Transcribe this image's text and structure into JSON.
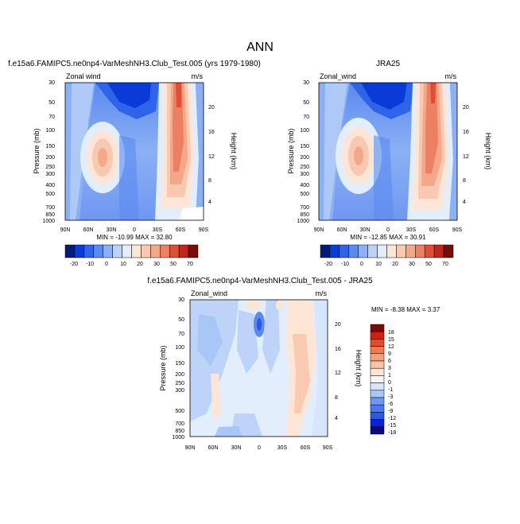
{
  "title": "ANN",
  "colors": {
    "diff_palette": [
      "#0a0a7a",
      "#0a22d8",
      "#2a56ea",
      "#4a78f0",
      "#6f97f2",
      "#a8c6f6",
      "#d8e6fb",
      "#f5f5f5",
      "#fde6d6",
      "#f9c3a7",
      "#f5a07c",
      "#f07a50",
      "#e54b24",
      "#d51f0e",
      "#7a0b0b"
    ],
    "full_palette": [
      "#061a78",
      "#0a3ad8",
      "#2e63ea",
      "#5a8af0",
      "#8bb0f4",
      "#bdd4f8",
      "#e3eefc",
      "#fde6d8",
      "#f8c8b0",
      "#f4a88a",
      "#ed8062",
      "#de4f36",
      "#c1261a",
      "#7a0b0b"
    ]
  },
  "chart_data": [
    {
      "type": "heatmap",
      "panel_title": "f.e15a6.FAMIPC5.ne0np4-VarMeshNH3.Club_Test.005 (yrs 1979-1980)",
      "variable": "Zonal wind",
      "units": "m/s",
      "ylabel": "Pressure (mb)",
      "ylabel_right": "Height (km)",
      "x_ticks": [
        "90N",
        "60N",
        "30N",
        "0",
        "30S",
        "60S",
        "90S"
      ],
      "y_ticks": [
        "30",
        "50",
        "70",
        "100",
        "150",
        "200",
        "250",
        "300",
        "400",
        "500",
        "700",
        "850",
        "1000"
      ],
      "height_ticks": [
        "20",
        "16",
        "12",
        "8",
        "4"
      ],
      "min_max": "MIN = -10.99  MAX = 32.80",
      "colorbar_labels": [
        "-20",
        "-10",
        "0",
        "10",
        "20",
        "30",
        "50",
        "70"
      ],
      "field": {
        "x": [
          90,
          60,
          30,
          0,
          -30,
          -60,
          -90
        ],
        "features": [
          {
            "lat": 33,
            "pressure": 200,
            "max_ms": 32.8
          },
          {
            "lat": -40,
            "pressure": 200,
            "max_ms": 30.0
          },
          {
            "lat": 0,
            "pressure": 50,
            "min_ms": -11.0
          }
        ]
      }
    },
    {
      "type": "heatmap",
      "panel_title": "JRA25",
      "variable": "Zonal_wind",
      "units": "m/s",
      "ylabel": "Pressure (mb)",
      "ylabel_right": "Height (km)",
      "x_ticks": [
        "90N",
        "60N",
        "30N",
        "0",
        "30S",
        "60S",
        "90S"
      ],
      "y_ticks": [
        "30",
        "50",
        "70",
        "100",
        "150",
        "200",
        "250",
        "300",
        "400",
        "500",
        "700",
        "850",
        "1000"
      ],
      "height_ticks": [
        "20",
        "16",
        "12",
        "8",
        "4"
      ],
      "min_max": "MIN = -12.85  MAX =  30.91",
      "colorbar_labels": [
        "-20",
        "-10",
        "0",
        "10",
        "20",
        "30",
        "50",
        "70"
      ],
      "field": {
        "x": [
          90,
          60,
          30,
          0,
          -30,
          -60,
          -90
        ],
        "features": [
          {
            "lat": 33,
            "pressure": 200,
            "max_ms": 30.9
          },
          {
            "lat": -42,
            "pressure": 200,
            "max_ms": 30.0
          },
          {
            "lat": 0,
            "pressure": 50,
            "min_ms": -12.85
          }
        ]
      }
    },
    {
      "type": "heatmap",
      "panel_title": "f.e15a6.FAMIPC5.ne0np4-VarMeshNH3.Club_Test.005 - JRA25",
      "variable": "Zonal_wind",
      "units": "m/s",
      "ylabel": "Pressure (mb)",
      "ylabel_right": "Height (km)",
      "x_ticks": [
        "90N",
        "60N",
        "30N",
        "0",
        "30S",
        "60S",
        "90S"
      ],
      "y_ticks": [
        "30",
        "50",
        "70",
        "100",
        "150",
        "200",
        "250",
        "300",
        "500",
        "700",
        "850",
        "1000"
      ],
      "height_ticks": [
        "20",
        "16",
        "12",
        "8",
        "4"
      ],
      "min_max": "MIN = -8.38  MAX =   3.37",
      "colorbar_labels": [
        "18",
        "15",
        "12",
        "9",
        "6",
        "3",
        "1",
        "0",
        "-1",
        "-3",
        "-6",
        "-9",
        "-12",
        "-15",
        "-18"
      ],
      "field": {
        "x": [
          90,
          60,
          30,
          0,
          -30,
          -60,
          -90
        ],
        "features": [
          {
            "lat": 0,
            "pressure": 50,
            "min_ms": -8.38
          },
          {
            "lat": -45,
            "pressure": 400,
            "max_ms": 3.37
          }
        ]
      }
    }
  ]
}
